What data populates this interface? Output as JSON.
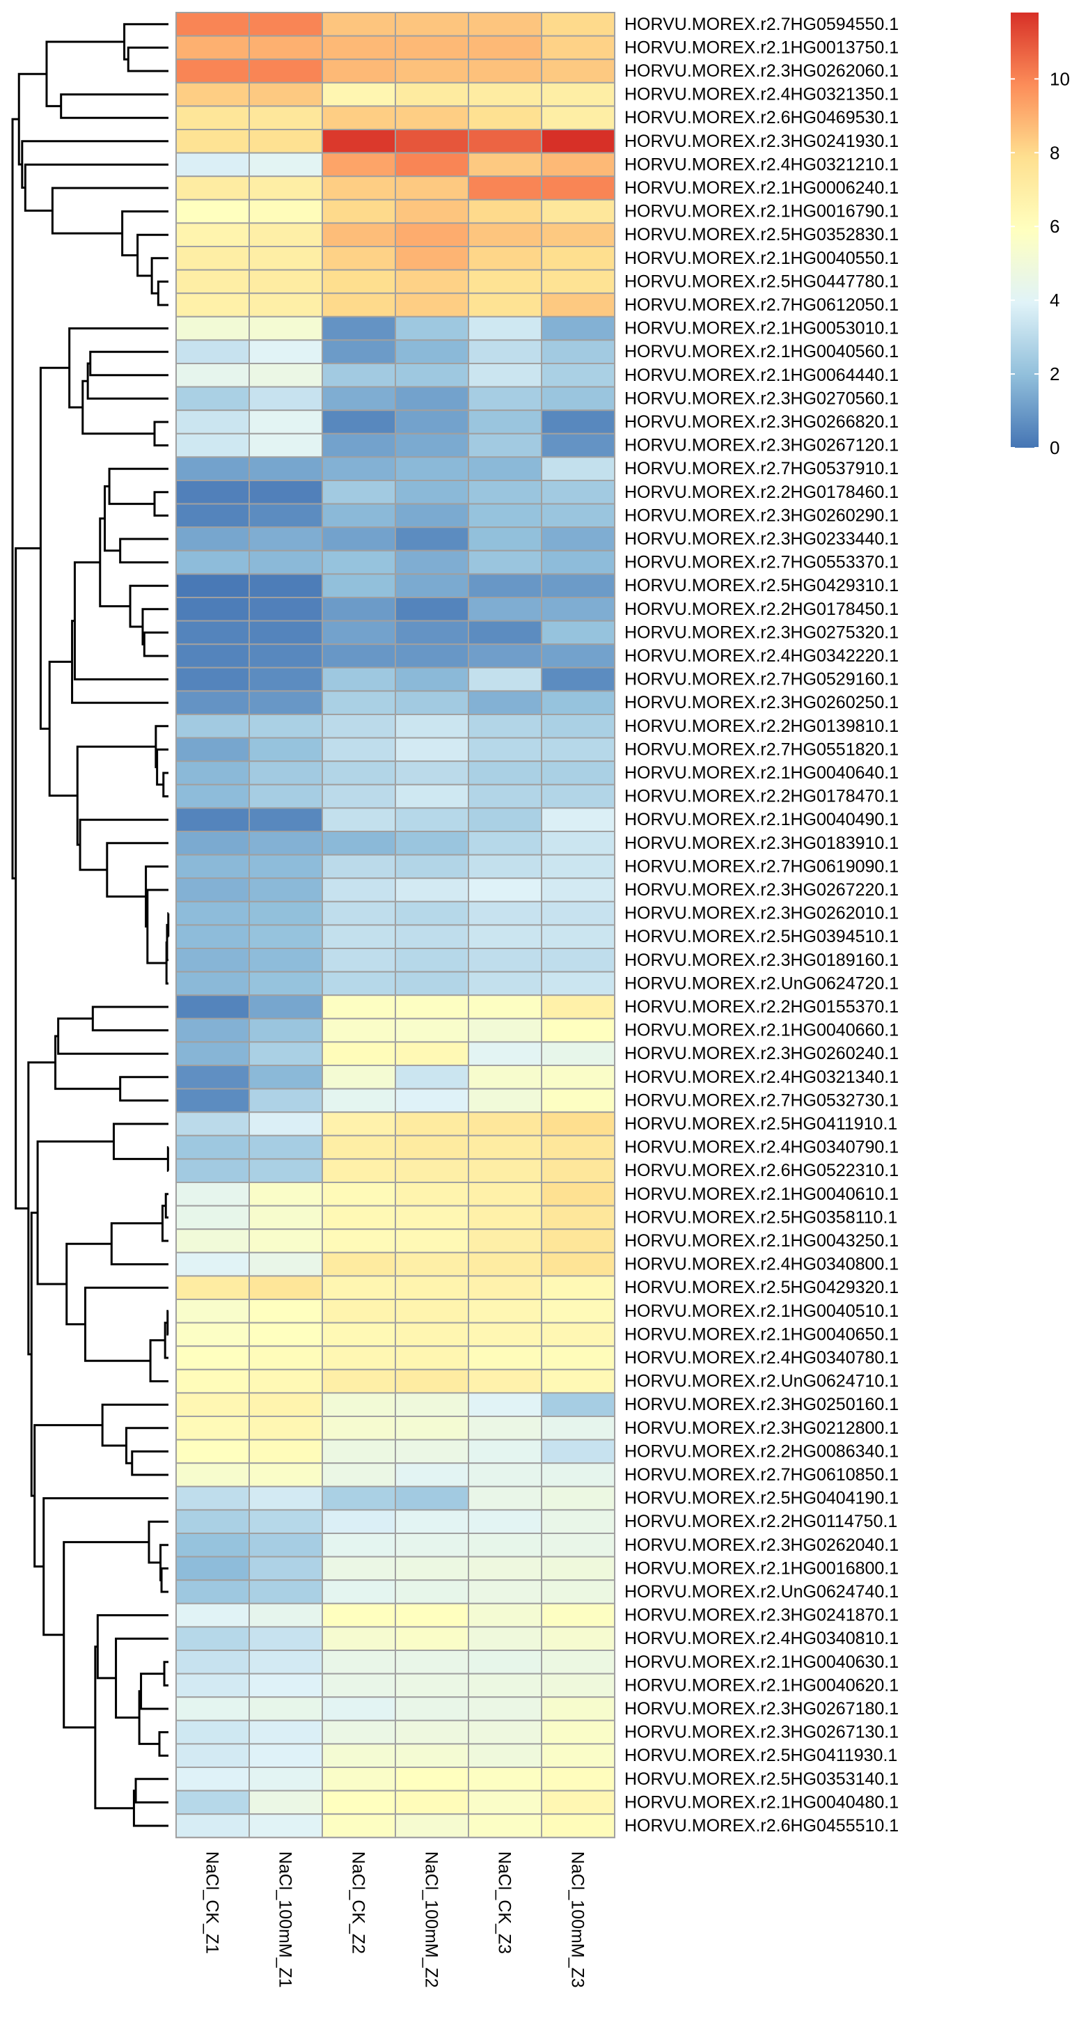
{
  "chart_data": {
    "type": "heatmap",
    "columns": [
      "NaCl_CK_Z1",
      "NaCl_100mM_Z1",
      "NaCl_CK_Z2",
      "NaCl_100mM_Z2",
      "NaCl_CK_Z3",
      "NaCl_100mM_Z3"
    ],
    "rows": [
      "HORVU.MOREX.r2.7HG0594550.1",
      "HORVU.MOREX.r2.1HG0013750.1",
      "HORVU.MOREX.r2.3HG0262060.1",
      "HORVU.MOREX.r2.4HG0321350.1",
      "HORVU.MOREX.r2.6HG0469530.1",
      "HORVU.MOREX.r2.3HG0241930.1",
      "HORVU.MOREX.r2.4HG0321210.1",
      "HORVU.MOREX.r2.1HG0006240.1",
      "HORVU.MOREX.r2.1HG0016790.1",
      "HORVU.MOREX.r2.5HG0352830.1",
      "HORVU.MOREX.r2.1HG0040550.1",
      "HORVU.MOREX.r2.5HG0447780.1",
      "HORVU.MOREX.r2.7HG0612050.1",
      "HORVU.MOREX.r2.1HG0053010.1",
      "HORVU.MOREX.r2.1HG0040560.1",
      "HORVU.MOREX.r2.1HG0064440.1",
      "HORVU.MOREX.r2.3HG0270560.1",
      "HORVU.MOREX.r2.3HG0266820.1",
      "HORVU.MOREX.r2.3HG0267120.1",
      "HORVU.MOREX.r2.7HG0537910.1",
      "HORVU.MOREX.r2.2HG0178460.1",
      "HORVU.MOREX.r2.3HG0260290.1",
      "HORVU.MOREX.r2.3HG0233440.1",
      "HORVU.MOREX.r2.7HG0553370.1",
      "HORVU.MOREX.r2.5HG0429310.1",
      "HORVU.MOREX.r2.2HG0178450.1",
      "HORVU.MOREX.r2.3HG0275320.1",
      "HORVU.MOREX.r2.4HG0342220.1",
      "HORVU.MOREX.r2.7HG0529160.1",
      "HORVU.MOREX.r2.3HG0260250.1",
      "HORVU.MOREX.r2.2HG0139810.1",
      "HORVU.MOREX.r2.7HG0551820.1",
      "HORVU.MOREX.r2.1HG0040640.1",
      "HORVU.MOREX.r2.2HG0178470.1",
      "HORVU.MOREX.r2.1HG0040490.1",
      "HORVU.MOREX.r2.3HG0183910.1",
      "HORVU.MOREX.r2.7HG0619090.1",
      "HORVU.MOREX.r2.3HG0267220.1",
      "HORVU.MOREX.r2.3HG0262010.1",
      "HORVU.MOREX.r2.5HG0394510.1",
      "HORVU.MOREX.r2.3HG0189160.1",
      "HORVU.MOREX.r2.UnG0624720.1",
      "HORVU.MOREX.r2.2HG0155370.1",
      "HORVU.MOREX.r2.1HG0040660.1",
      "HORVU.MOREX.r2.3HG0260240.1",
      "HORVU.MOREX.r2.4HG0321340.1",
      "HORVU.MOREX.r2.7HG0532730.1",
      "HORVU.MOREX.r2.5HG0411910.1",
      "HORVU.MOREX.r2.4HG0340790.1",
      "HORVU.MOREX.r2.6HG0522310.1",
      "HORVU.MOREX.r2.1HG0040610.1",
      "HORVU.MOREX.r2.5HG0358110.1",
      "HORVU.MOREX.r2.1HG0043250.1",
      "HORVU.MOREX.r2.4HG0340800.1",
      "HORVU.MOREX.r2.5HG0429320.1",
      "HORVU.MOREX.r2.1HG0040510.1",
      "HORVU.MOREX.r2.1HG0040650.1",
      "HORVU.MOREX.r2.4HG0340780.1",
      "HORVU.MOREX.r2.UnG0624710.1",
      "HORVU.MOREX.r2.3HG0250160.1",
      "HORVU.MOREX.r2.3HG0212800.1",
      "HORVU.MOREX.r2.2HG0086340.1",
      "HORVU.MOREX.r2.7HG0610850.1",
      "HORVU.MOREX.r2.5HG0404190.1",
      "HORVU.MOREX.r2.2HG0114750.1",
      "HORVU.MOREX.r2.3HG0262040.1",
      "HORVU.MOREX.r2.1HG0016800.1",
      "HORVU.MOREX.r2.UnG0624740.1",
      "HORVU.MOREX.r2.3HG0241870.1",
      "HORVU.MOREX.r2.4HG0340810.1",
      "HORVU.MOREX.r2.1HG0040630.1",
      "HORVU.MOREX.r2.1HG0040620.1",
      "HORVU.MOREX.r2.3HG0267180.1",
      "HORVU.MOREX.r2.3HG0267130.1",
      "HORVU.MOREX.r2.5HG0411930.1",
      "HORVU.MOREX.r2.5HG0353140.1",
      "HORVU.MOREX.r2.1HG0040480.1",
      "HORVU.MOREX.r2.6HG0455510.1"
    ],
    "values": [
      [
        10,
        10,
        8.5,
        8.5,
        8.5,
        8
      ],
      [
        9,
        9,
        8.8,
        8.8,
        8.8,
        8.2
      ],
      [
        10,
        10,
        8.8,
        8.6,
        8.6,
        8.4
      ],
      [
        8.3,
        8.4,
        6.5,
        7.2,
        7.1,
        7
      ],
      [
        7.5,
        7.4,
        8.3,
        8.3,
        7.8,
        7
      ],
      [
        7.7,
        7.8,
        11.6,
        11,
        10.7,
        11.8
      ],
      [
        3.8,
        4.1,
        9.3,
        10,
        8.4,
        8.8
      ],
      [
        7.1,
        7,
        8.3,
        8.4,
        10,
        10
      ],
      [
        5.9,
        6.1,
        8,
        8.5,
        8,
        7.4
      ],
      [
        6.6,
        6.9,
        8.7,
        9.1,
        8.5,
        8.4
      ],
      [
        7,
        7,
        8.2,
        8.9,
        8.1,
        7.9
      ],
      [
        7,
        7.1,
        7.9,
        8.2,
        7.7,
        7.7
      ],
      [
        6.8,
        6.9,
        8,
        8.3,
        7.7,
        8.4
      ],
      [
        5.1,
        5.2,
        0.8,
        2.3,
        3.5,
        1.6
      ],
      [
        3.3,
        4,
        1,
        1.8,
        3.1,
        2.4
      ],
      [
        4.3,
        4.6,
        2.4,
        2.3,
        3.4,
        2.6
      ],
      [
        2.6,
        3.3,
        1.5,
        1.2,
        2.5,
        2.2
      ],
      [
        3.4,
        4.1,
        0.5,
        1.2,
        2.2,
        0.5
      ],
      [
        3.5,
        4.1,
        1.2,
        1.4,
        2.4,
        0.8
      ],
      [
        1.2,
        1.3,
        1.6,
        1.8,
        1.8,
        3.2
      ],
      [
        0.3,
        0.3,
        2.4,
        1.8,
        2.2,
        2.4
      ],
      [
        0.4,
        0.6,
        1.8,
        1.4,
        2.1,
        2.2
      ],
      [
        1.3,
        1.5,
        1.2,
        0.6,
        2,
        1.5
      ],
      [
        1.9,
        1.8,
        2.1,
        1.5,
        2.2,
        1.9
      ],
      [
        0.1,
        0.2,
        2,
        1.4,
        0.9,
        1
      ],
      [
        0.2,
        0.3,
        1,
        0.4,
        1.5,
        1.5
      ],
      [
        0.4,
        0.4,
        1.2,
        0.8,
        0.6,
        2.1
      ],
      [
        0.4,
        0.5,
        0.9,
        0.9,
        1.1,
        1.2
      ],
      [
        0.4,
        0.6,
        2.3,
        1.8,
        3.2,
        0.6
      ],
      [
        0.8,
        0.9,
        2.6,
        2.4,
        1.6,
        2.1
      ],
      [
        2.4,
        2.6,
        3,
        3.4,
        2.8,
        2.6
      ],
      [
        1.3,
        2.1,
        3.1,
        3.6,
        2.9,
        2.9
      ],
      [
        1.8,
        2.4,
        2.8,
        3,
        2.6,
        2.6
      ],
      [
        1.9,
        2.5,
        3,
        3.5,
        2.8,
        2.8
      ],
      [
        0.4,
        0.5,
        3.2,
        2.9,
        2.6,
        3.8
      ],
      [
        1.4,
        1.6,
        1.8,
        2.2,
        2.9,
        3.4
      ],
      [
        1.8,
        1.9,
        3,
        2.8,
        3.2,
        3.4
      ],
      [
        1.6,
        1.8,
        3.3,
        3.6,
        3.9,
        3.6
      ],
      [
        1.9,
        2,
        3.1,
        2.9,
        3.3,
        3.3
      ],
      [
        1.9,
        2.1,
        3.2,
        3.1,
        3.4,
        3.4
      ],
      [
        1.7,
        1.9,
        3.1,
        2.9,
        3.1,
        3.1
      ],
      [
        1.8,
        2.1,
        2.9,
        2.8,
        3.2,
        3.4
      ],
      [
        0.4,
        1.3,
        5.8,
        5.8,
        5.8,
        6.8
      ],
      [
        1.6,
        2.2,
        5.6,
        5.5,
        5.1,
        5.9
      ],
      [
        1.7,
        2.6,
        6.1,
        6.3,
        4.1,
        4.4
      ],
      [
        0.7,
        1.8,
        5.2,
        3.4,
        5.4,
        5.6
      ],
      [
        0.6,
        2.7,
        4.2,
        3.9,
        5,
        5.8
      ],
      [
        3,
        3.8,
        6.7,
        7.2,
        7.4,
        7.9
      ],
      [
        2.3,
        2.5,
        7,
        7.2,
        7.1,
        7.4
      ],
      [
        2.4,
        2.6,
        6.8,
        6.9,
        7,
        7.4
      ],
      [
        4.3,
        5.6,
        6.2,
        6.6,
        6.8,
        7.8
      ],
      [
        4.4,
        5.4,
        6.3,
        6.4,
        6.8,
        7.4
      ],
      [
        5,
        5.5,
        6.2,
        6.3,
        6.9,
        7.5
      ],
      [
        4,
        4.5,
        7.2,
        6.9,
        7.1,
        7.6
      ],
      [
        7.1,
        7.5,
        6.5,
        6.6,
        6.7,
        6.3
      ],
      [
        5.5,
        5.9,
        6.6,
        6.6,
        6.4,
        6.2
      ],
      [
        5.7,
        5.9,
        6.3,
        6.5,
        6.4,
        6.4
      ],
      [
        5.9,
        6.1,
        6.4,
        6.5,
        6.1,
        6.1
      ],
      [
        6.1,
        6.3,
        6.9,
        7.1,
        6.7,
        6.3
      ],
      [
        6.4,
        6.6,
        5.1,
        4.9,
        4,
        2.5
      ],
      [
        6.2,
        6.4,
        5.3,
        5.2,
        4.6,
        4.3
      ],
      [
        5.9,
        6.1,
        4.7,
        4.6,
        4.2,
        3.3
      ],
      [
        5.4,
        5.6,
        4.6,
        4.1,
        4.3,
        4.3
      ],
      [
        3.1,
        3.6,
        2.6,
        2.4,
        4.5,
        4.7
      ],
      [
        2.6,
        2.9,
        3.8,
        4.1,
        4.1,
        4.5
      ],
      [
        2.1,
        2.5,
        4.2,
        4.3,
        4.4,
        4.5
      ],
      [
        1.9,
        2.7,
        4.6,
        4.7,
        4.8,
        4.9
      ],
      [
        2.3,
        2.6,
        4.2,
        4.4,
        4.6,
        4.7
      ],
      [
        4,
        4.3,
        5.9,
        5.9,
        5.2,
        5.8
      ],
      [
        2.9,
        3.3,
        5.3,
        5.6,
        4.9,
        5.3
      ],
      [
        3.3,
        3.6,
        4.5,
        4.5,
        4.4,
        4.7
      ],
      [
        3.6,
        3.9,
        4.5,
        4.6,
        4.7,
        4.9
      ],
      [
        4.2,
        4.4,
        4.1,
        4.5,
        4.6,
        5.4
      ],
      [
        3.5,
        3.8,
        4.6,
        4.8,
        4.8,
        5.6
      ],
      [
        3.6,
        3.9,
        5.2,
        5.2,
        4.9,
        5.6
      ],
      [
        3.9,
        4.1,
        5.6,
        5.9,
        5.8,
        6
      ],
      [
        2.9,
        4.6,
        5.9,
        6.1,
        5.6,
        6.4
      ],
      [
        3.7,
        4,
        5.8,
        5.3,
        5.7,
        6.1
      ]
    ],
    "colorbar": {
      "min": 0,
      "max": 11.8,
      "ticks": [
        0,
        2,
        4,
        6,
        8,
        10
      ]
    },
    "color_stops": [
      "#4575b4",
      "#91bfdb",
      "#e0f3f8",
      "#ffffbf",
      "#fee090",
      "#fc8d59",
      "#d73027"
    ],
    "cell_border_color": "#a0a0a0",
    "row_dendrogram": true,
    "legend_position": "top-right"
  }
}
